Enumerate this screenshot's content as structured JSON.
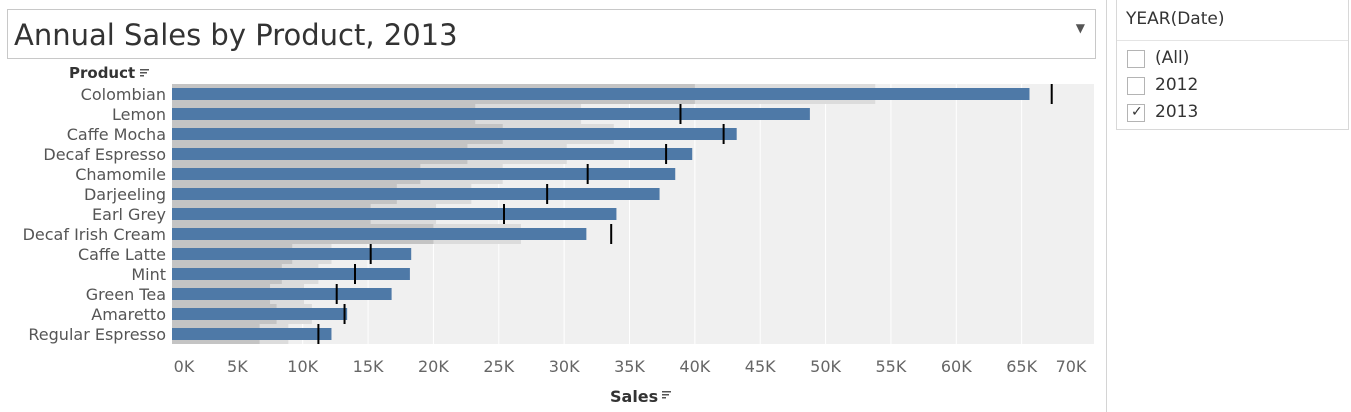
{
  "title": "Annual Sales by Product, 2013",
  "filter": {
    "title": "YEAR(Date)",
    "options": [
      {
        "label": "(All)",
        "checked": false
      },
      {
        "label": "2012",
        "checked": false
      },
      {
        "label": "2013",
        "checked": true
      }
    ]
  },
  "colors": {
    "bar": "#4e79a7",
    "band_dark": "#c4c4c4",
    "band_light": "#dcdcdc",
    "plot_bg": "#f0f0f0",
    "target_line": "#000000"
  },
  "chart_data": {
    "type": "bar",
    "orientation": "horizontal",
    "title": "Annual Sales by Product, 2013",
    "ylabel": "Product",
    "xlabel": "Sales",
    "xlim": [
      0,
      70000
    ],
    "xticks": [
      "0K",
      "5K",
      "10K",
      "15K",
      "20K",
      "25K",
      "30K",
      "35K",
      "40K",
      "45K",
      "50K",
      "55K",
      "60K",
      "65K",
      "70K"
    ],
    "categories": [
      "Colombian",
      "Lemon",
      "Caffe Mocha",
      "Decaf Espresso",
      "Chamomile",
      "Darjeeling",
      "Earl Grey",
      "Decaf Irish Cream",
      "Caffe Latte",
      "Mint",
      "Green Tea",
      "Amaretto",
      "Regular Espresso"
    ],
    "series": [
      {
        "name": "",
        "values": [
          65600,
          48800,
          43200,
          39800,
          38500,
          37300,
          34000,
          31700,
          18300,
          18200,
          16800,
          13400,
          12200
        ]
      }
    ],
    "reference_lines": [
      67300,
      38900,
      42200,
      37800,
      31800,
      28700,
      25400,
      33600,
      15200,
      14000,
      12600,
      13200,
      11200
    ],
    "bands": [
      {
        "dark": 40000,
        "light": 53800
      },
      {
        "dark": 23200,
        "light": 31300
      },
      {
        "dark": 25300,
        "light": 33800
      },
      {
        "dark": 22600,
        "light": 30200
      },
      {
        "dark": 19000,
        "light": 25300
      },
      {
        "dark": 17200,
        "light": 22900
      },
      {
        "dark": 15200,
        "light": 20200
      },
      {
        "dark": 20000,
        "light": 26700
      },
      {
        "dark": 9200,
        "light": 12200
      },
      {
        "dark": 8400,
        "light": 11200
      },
      {
        "dark": 7500,
        "light": 10100
      },
      {
        "dark": 8000,
        "light": 10700
      },
      {
        "dark": 6700,
        "light": 8900
      }
    ],
    "grid": true,
    "legend": "none"
  }
}
